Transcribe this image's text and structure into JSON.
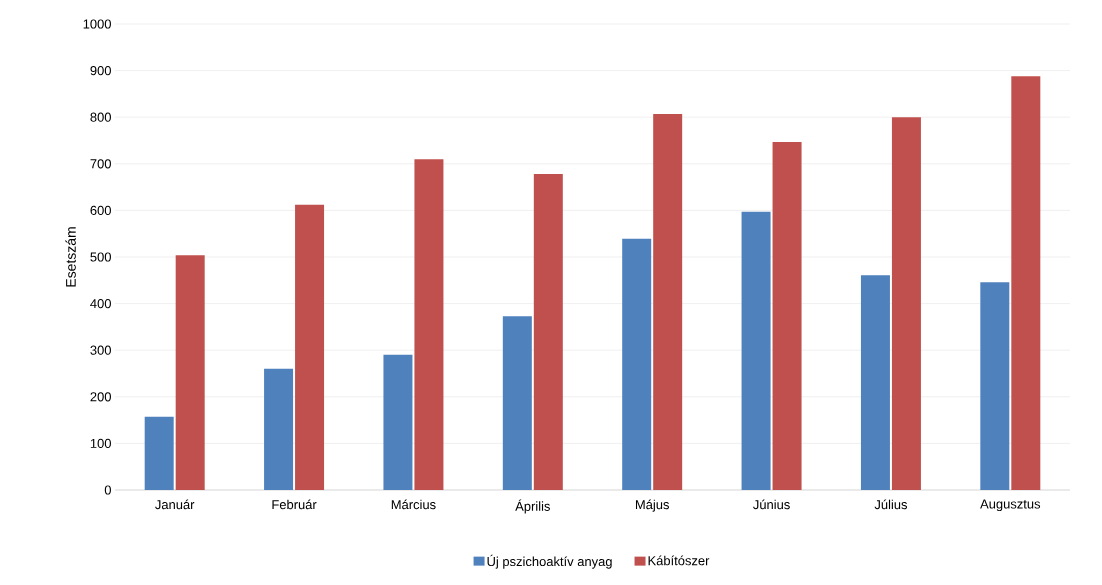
{
  "chart_data": {
    "type": "bar",
    "ylabel": "Esetszám",
    "categories": [
      "Január",
      "Február",
      "Március",
      "Április",
      "Május",
      "Június",
      "Július",
      "Augusztus"
    ],
    "series": [
      {
        "name": "Új pszichoaktív anyag",
        "color": "#4f81bd",
        "values": [
          157,
          260,
          290,
          373,
          539,
          597,
          461,
          446
        ]
      },
      {
        "name": "Kábítószer",
        "color": "#c0504d",
        "values": [
          504,
          612,
          710,
          678,
          807,
          747,
          800,
          888
        ]
      }
    ],
    "ylim": [
      0,
      1000
    ],
    "yticks": [
      0,
      100,
      200,
      300,
      400,
      500,
      600,
      700,
      800,
      900,
      1000
    ],
    "grid": "y",
    "legend": "bottom"
  }
}
